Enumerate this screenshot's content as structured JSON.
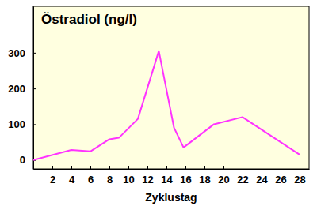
{
  "chart_data": {
    "type": "line",
    "title": "Östradiol (ng/l)",
    "x_label": "Zyklustag",
    "x": [
      0,
      4,
      6,
      8,
      9,
      11,
      13.2,
      14.8,
      15.8,
      19,
      22,
      28
    ],
    "values": [
      0,
      28,
      24,
      58,
      62,
      115,
      305,
      90,
      35,
      100,
      120,
      15
    ],
    "color": "#ff33ff",
    "xlim": [
      0,
      29
    ],
    "ylim": [
      -25,
      430
    ],
    "xticks": [
      2,
      4,
      6,
      8,
      10,
      12,
      14,
      16,
      18,
      20,
      22,
      24,
      26,
      28
    ],
    "yticks": [
      0,
      100,
      200,
      300
    ],
    "grid": false
  }
}
